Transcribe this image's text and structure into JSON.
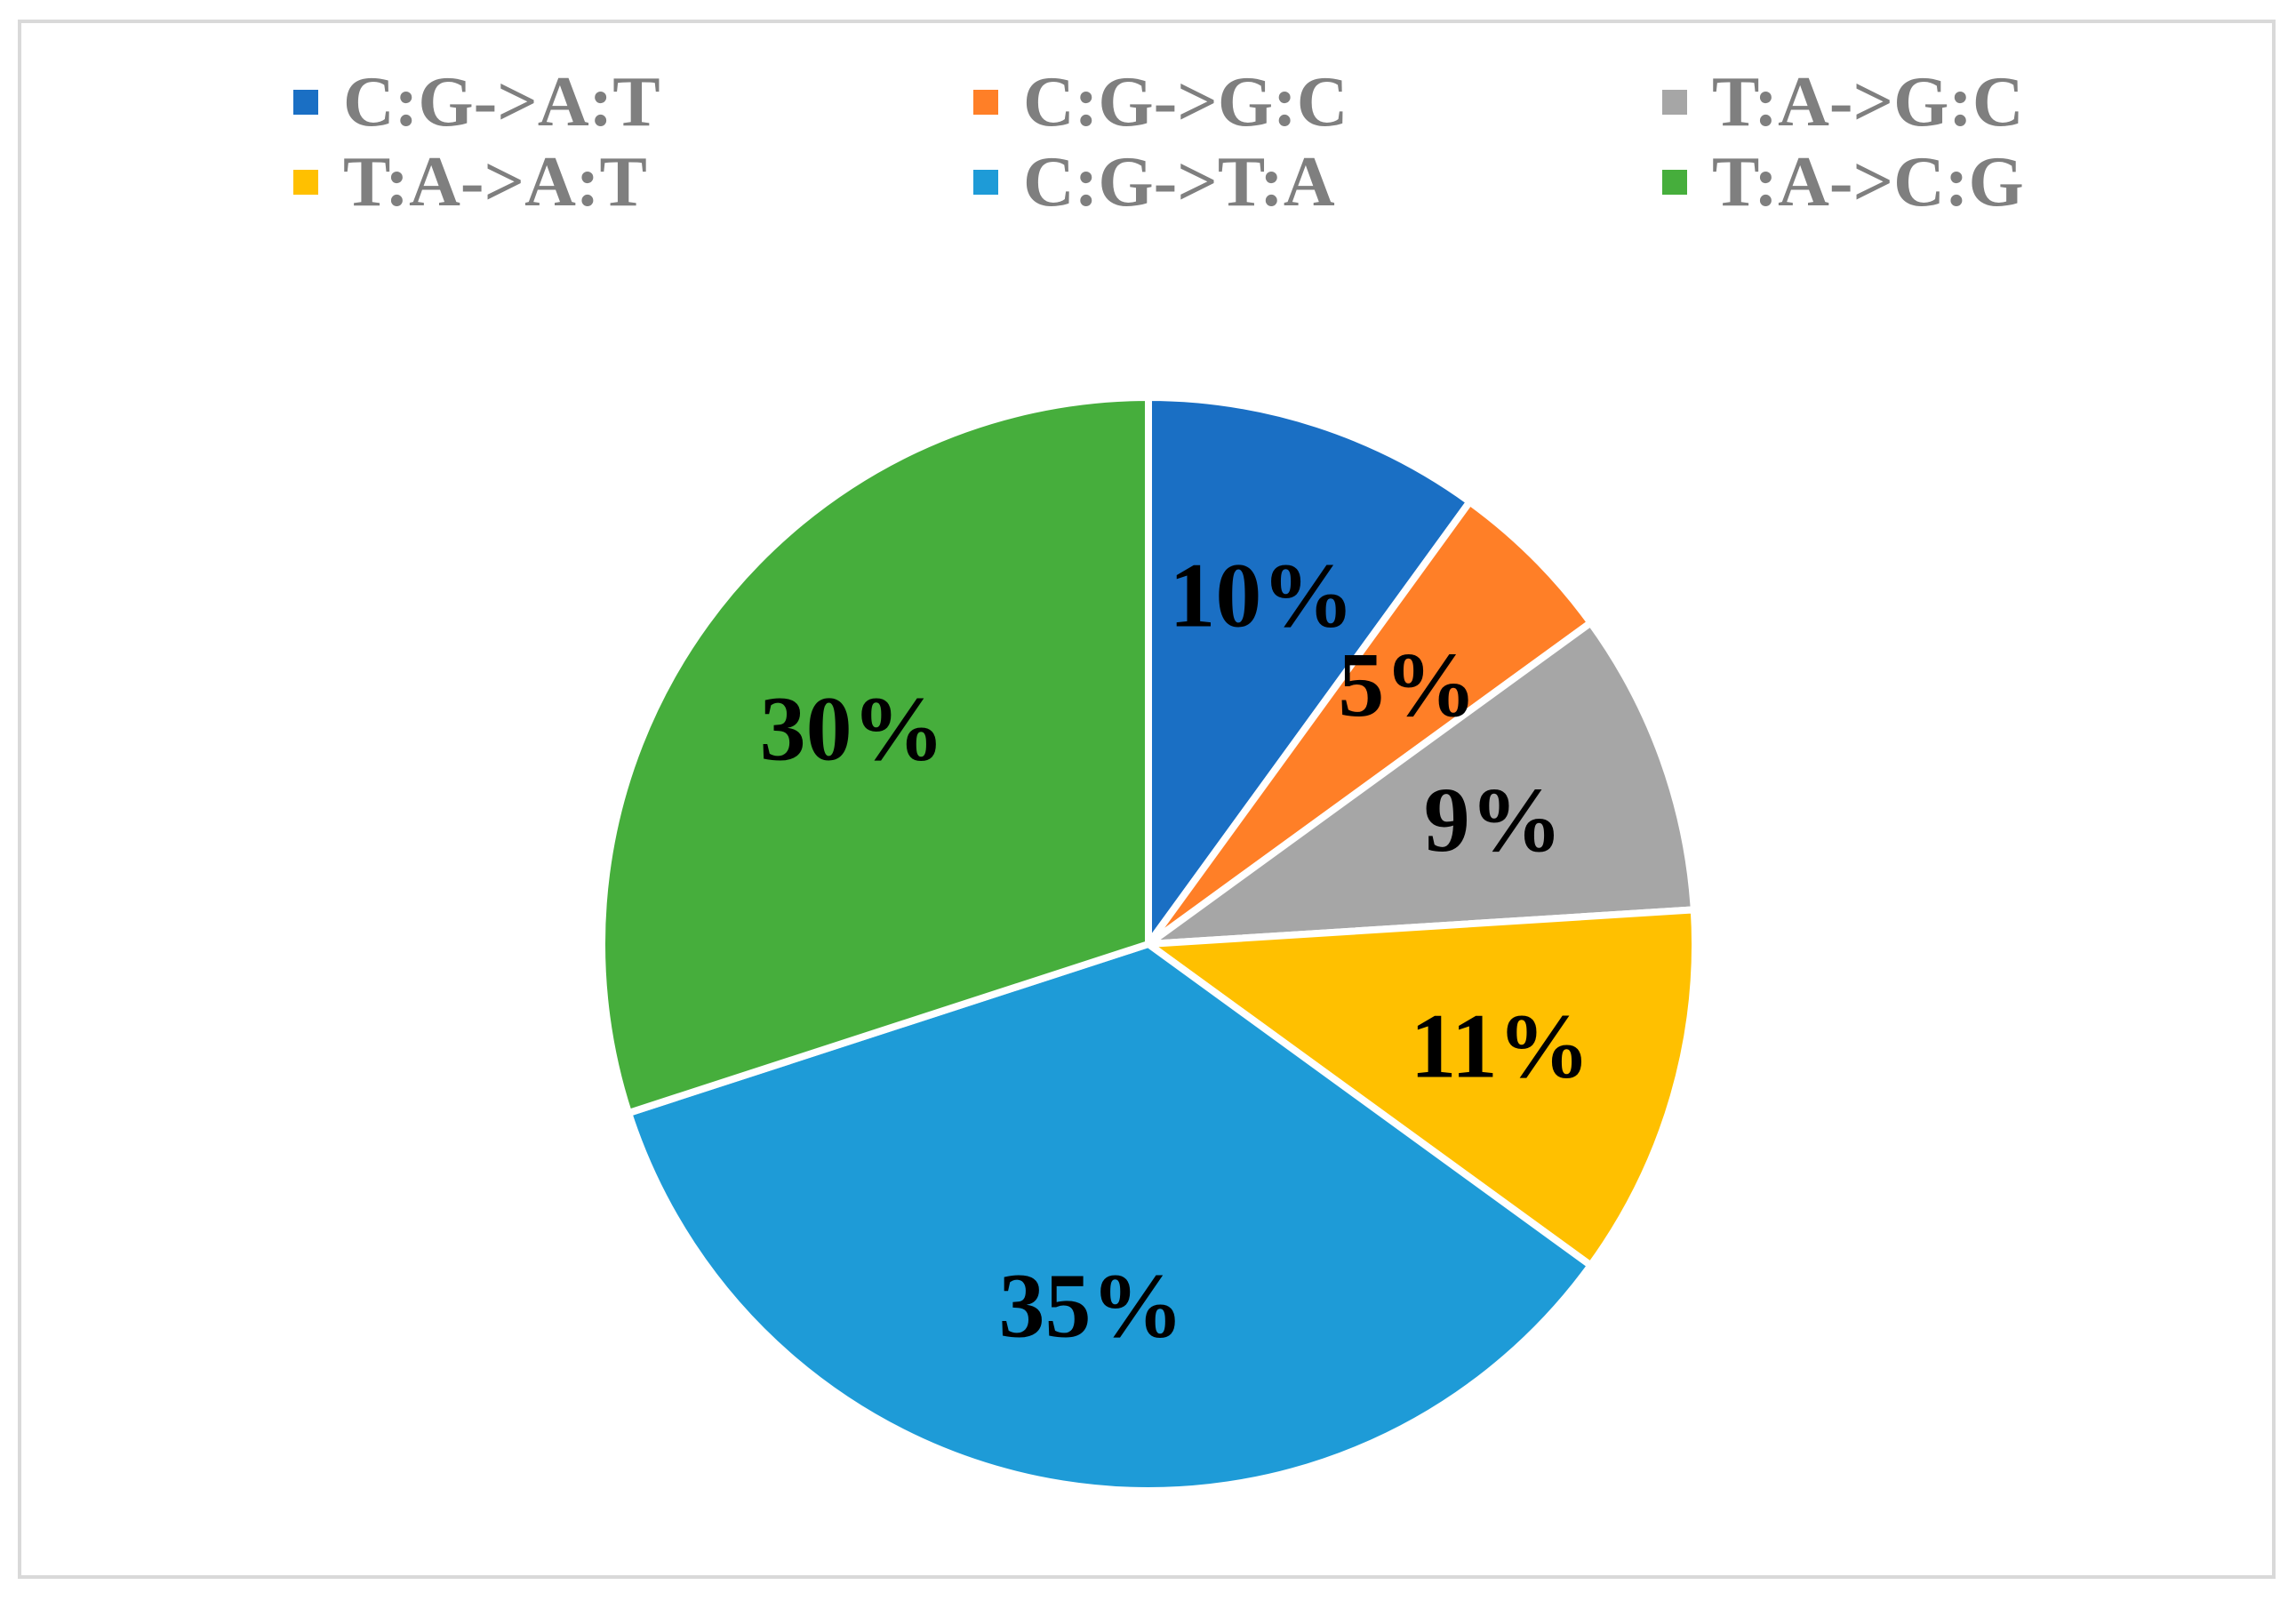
{
  "chart_data": {
    "type": "pie",
    "categories": [
      "C:G->A:T",
      "C:G->G:C",
      "T:A->G:C",
      "T:A->A:T",
      "C:G->T:A",
      "T:A->C:G"
    ],
    "values": [
      10,
      5,
      9,
      11,
      35,
      30
    ],
    "data_labels": [
      "10%",
      "5%",
      "9%",
      "11%",
      "35%",
      "30%"
    ],
    "colors": [
      "#1a6fc4",
      "#ff7f27",
      "#a6a6a6",
      "#ffc000",
      "#1e9bd7",
      "#46ae3c"
    ],
    "legend_position": "top",
    "title": ""
  }
}
